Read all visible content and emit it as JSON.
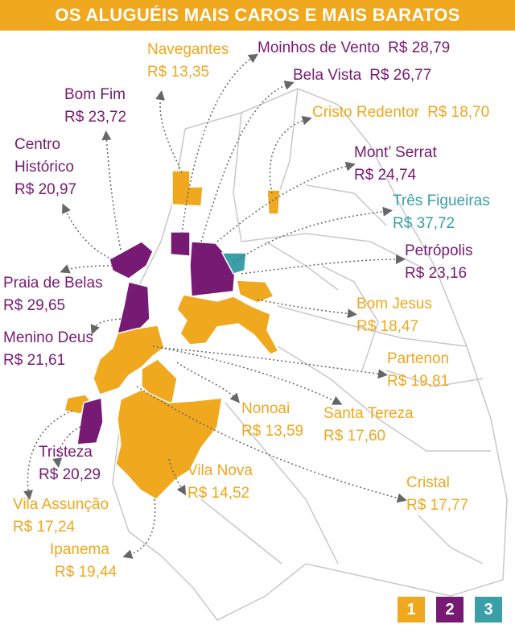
{
  "title": "OS ALUGUÉIS MAIS CAROS E MAIS BARATOS",
  "neighborhoods": [
    {
      "name": "Navegantes",
      "price": "R$ 13,35",
      "color": "#f0a81e"
    },
    {
      "name": "Moinhos de Vento",
      "price": "R$ 28,79",
      "color": "#771a73"
    },
    {
      "name": "Bela Vista",
      "price": "R$ 26,77",
      "color": "#771a73"
    },
    {
      "name": "Bom Fim",
      "price": "R$ 23,72",
      "color": "#771a73"
    },
    {
      "name": "Cristo Redentor",
      "price": "R$ 18,70",
      "color": "#f0a81e"
    },
    {
      "name": "Centro Histórico",
      "price": "R$ 20,97",
      "color": "#771a73"
    },
    {
      "name": "Mont’ Serrat",
      "price": "R$ 24,74",
      "color": "#771a73"
    },
    {
      "name": "Três Figueiras",
      "price": "R$ 37,72",
      "color": "#3a9fa8"
    },
    {
      "name": "Petrópolis",
      "price": "R$ 23,16",
      "color": "#771a73"
    },
    {
      "name": "Praia de Belas",
      "price": "R$ 29,65",
      "color": "#771a73"
    },
    {
      "name": "Bom Jesus",
      "price": "R$ 18,47",
      "color": "#f0a81e"
    },
    {
      "name": "Menino Deus",
      "price": "R$ 21,61",
      "color": "#771a73"
    },
    {
      "name": "Partenon",
      "price": "R$ 19,81",
      "color": "#f0a81e"
    },
    {
      "name": "Nonoai",
      "price": "R$ 13,59",
      "color": "#f0a81e"
    },
    {
      "name": "Santa Tereza",
      "price": "R$ 17,60",
      "color": "#f0a81e"
    },
    {
      "name": "Tristeza",
      "price": "R$ 20,29",
      "color": "#771a73"
    },
    {
      "name": "Vila Nova",
      "price": "R$ 14,52",
      "color": "#f0a81e"
    },
    {
      "name": "Cristal",
      "price": "R$ 17,77",
      "color": "#f0a81e"
    },
    {
      "name": "Vila Assunção",
      "price": "R$ 17,24",
      "color": "#f0a81e"
    },
    {
      "name": "Ipanema",
      "price": "R$ 19,44",
      "color": "#f0a81e"
    }
  ],
  "legend": [
    {
      "label": "1",
      "color": "#f0a81e"
    },
    {
      "label": "2",
      "color": "#771a73"
    },
    {
      "label": "3",
      "color": "#3a9fa8"
    }
  ]
}
